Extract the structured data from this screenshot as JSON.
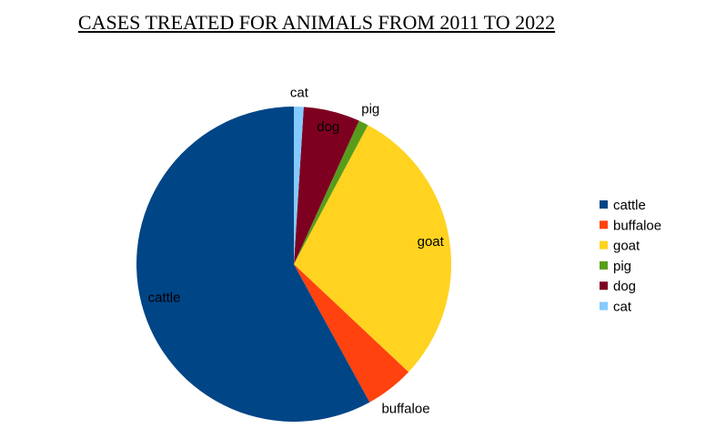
{
  "chart_data": {
    "type": "pie",
    "title": "CASES TREATED FOR ANIMALS FROM 2011 TO 2022",
    "categories": [
      "cattle",
      "buffaloe",
      "goat",
      "pig",
      "dog",
      "cat"
    ],
    "values": [
      58.0,
      5.0,
      29.2,
      1.0,
      5.8,
      1.0
    ],
    "unit": "percent (estimated)",
    "colors": [
      "#004586",
      "#ff420e",
      "#ffd320",
      "#579d1c",
      "#7e0021",
      "#83caff"
    ],
    "legend": "right"
  }
}
